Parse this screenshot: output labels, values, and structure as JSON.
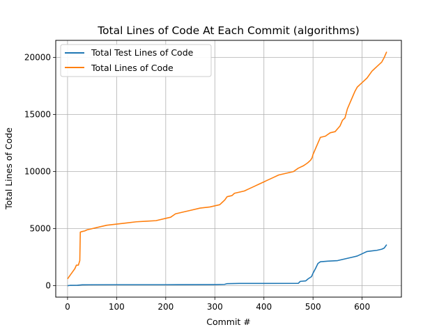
{
  "chart_data": {
    "type": "line",
    "title": "Total Lines of Code At Each Commit (algorithms)",
    "xlabel": "Commit #",
    "ylabel": "Total Lines of Code",
    "xlim": [
      -24,
      680
    ],
    "ylim": [
      -1000,
      21500
    ],
    "xticks": [
      0,
      100,
      200,
      300,
      400,
      500,
      600
    ],
    "yticks": [
      0,
      5000,
      10000,
      15000,
      20000
    ],
    "grid": true,
    "legend_position": "top-left",
    "series": [
      {
        "name": "Total Test Lines of Code",
        "color": "#1f77b4",
        "points": [
          [
            0,
            0
          ],
          [
            5,
            30
          ],
          [
            20,
            40
          ],
          [
            30,
            80
          ],
          [
            100,
            90
          ],
          [
            200,
            90
          ],
          [
            300,
            100
          ],
          [
            320,
            120
          ],
          [
            325,
            180
          ],
          [
            350,
            200
          ],
          [
            400,
            200
          ],
          [
            470,
            210
          ],
          [
            474,
            380
          ],
          [
            485,
            420
          ],
          [
            490,
            600
          ],
          [
            497,
            800
          ],
          [
            500,
            1100
          ],
          [
            505,
            1500
          ],
          [
            510,
            1950
          ],
          [
            515,
            2100
          ],
          [
            530,
            2150
          ],
          [
            550,
            2200
          ],
          [
            560,
            2300
          ],
          [
            570,
            2400
          ],
          [
            580,
            2500
          ],
          [
            590,
            2600
          ],
          [
            600,
            2800
          ],
          [
            610,
            3000
          ],
          [
            620,
            3050
          ],
          [
            630,
            3100
          ],
          [
            640,
            3200
          ],
          [
            645,
            3300
          ],
          [
            650,
            3600
          ]
        ]
      },
      {
        "name": "Total Lines of Code",
        "color": "#ff7f0e",
        "points": [
          [
            0,
            600
          ],
          [
            5,
            900
          ],
          [
            10,
            1200
          ],
          [
            15,
            1500
          ],
          [
            18,
            1800
          ],
          [
            22,
            1800
          ],
          [
            25,
            2200
          ],
          [
            26,
            4700
          ],
          [
            30,
            4750
          ],
          [
            35,
            4800
          ],
          [
            40,
            4900
          ],
          [
            50,
            5000
          ],
          [
            60,
            5100
          ],
          [
            70,
            5200
          ],
          [
            80,
            5300
          ],
          [
            100,
            5400
          ],
          [
            120,
            5500
          ],
          [
            140,
            5600
          ],
          [
            160,
            5650
          ],
          [
            180,
            5700
          ],
          [
            200,
            5900
          ],
          [
            210,
            6000
          ],
          [
            220,
            6300
          ],
          [
            230,
            6400
          ],
          [
            250,
            6600
          ],
          [
            270,
            6800
          ],
          [
            290,
            6900
          ],
          [
            300,
            7000
          ],
          [
            310,
            7100
          ],
          [
            315,
            7300
          ],
          [
            320,
            7500
          ],
          [
            325,
            7800
          ],
          [
            335,
            7900
          ],
          [
            340,
            8100
          ],
          [
            350,
            8200
          ],
          [
            360,
            8300
          ],
          [
            370,
            8500
          ],
          [
            380,
            8700
          ],
          [
            390,
            8900
          ],
          [
            400,
            9100
          ],
          [
            410,
            9300
          ],
          [
            420,
            9500
          ],
          [
            430,
            9700
          ],
          [
            440,
            9800
          ],
          [
            450,
            9900
          ],
          [
            460,
            10000
          ],
          [
            470,
            10300
          ],
          [
            480,
            10500
          ],
          [
            487,
            10700
          ],
          [
            490,
            10800
          ],
          [
            495,
            11000
          ],
          [
            498,
            11200
          ],
          [
            500,
            11500
          ],
          [
            505,
            12000
          ],
          [
            510,
            12500
          ],
          [
            515,
            13000
          ],
          [
            525,
            13100
          ],
          [
            535,
            13400
          ],
          [
            545,
            13500
          ],
          [
            555,
            14000
          ],
          [
            560,
            14500
          ],
          [
            565,
            14700
          ],
          [
            570,
            15500
          ],
          [
            575,
            16000
          ],
          [
            580,
            16500
          ],
          [
            585,
            17000
          ],
          [
            590,
            17400
          ],
          [
            595,
            17600
          ],
          [
            600,
            17800
          ],
          [
            610,
            18200
          ],
          [
            620,
            18800
          ],
          [
            625,
            19000
          ],
          [
            630,
            19200
          ],
          [
            635,
            19400
          ],
          [
            640,
            19600
          ],
          [
            645,
            20000
          ],
          [
            650,
            20500
          ]
        ]
      }
    ]
  }
}
